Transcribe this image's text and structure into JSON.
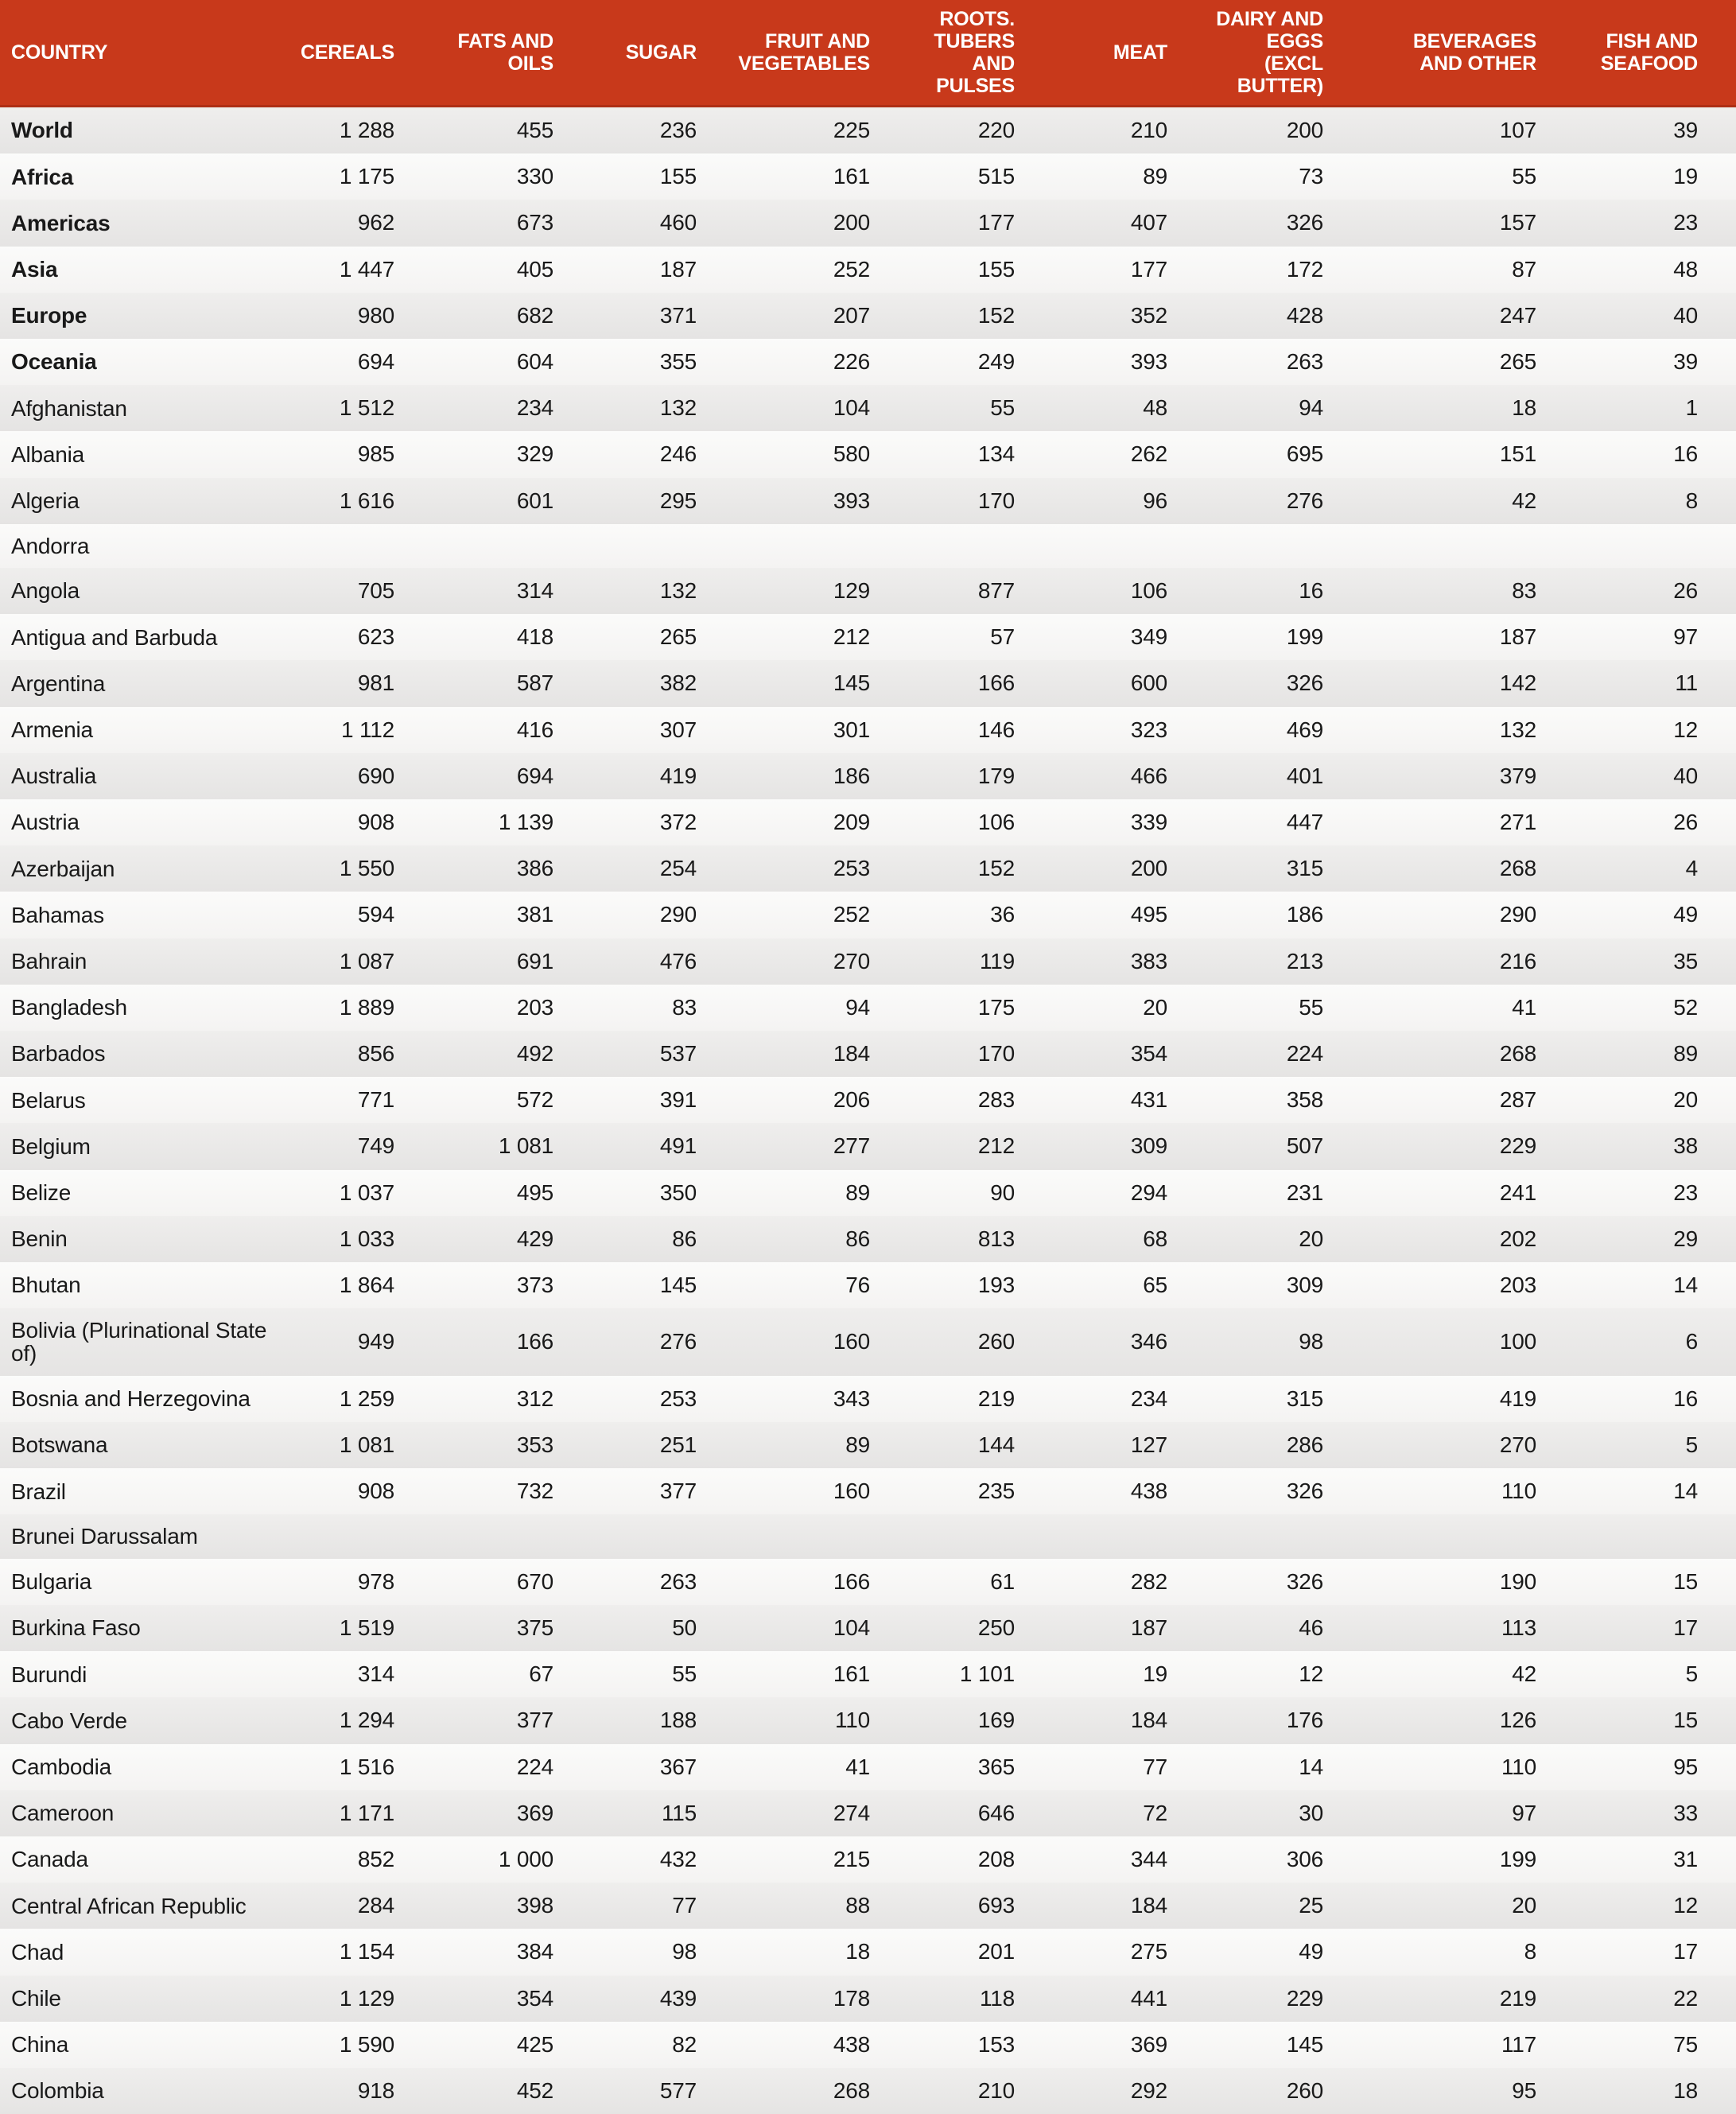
{
  "style": {
    "header_bg": "#c8391b",
    "header_text": "#ffffff",
    "row_odd_bg": "#e8e7e6",
    "row_even_bg": "#f8f7f6",
    "body_text": "#191919"
  },
  "chart_data": {
    "type": "table",
    "columns": [
      "COUNTRY",
      "CEREALS",
      "FATS AND OILS",
      "SUGAR",
      "FRUIT AND\nVEGETABLES",
      "ROOTS. TUBERS\nAND PULSES",
      "MEAT",
      "DAIRY AND EGGS\n(EXCL BUTTER)",
      "BEVERAGES\nAND OTHER",
      "FISH AND\nSEAFOOD"
    ],
    "rows": [
      {
        "country": "World",
        "bold": true,
        "values": [
          "1 288",
          "455",
          "236",
          "225",
          "220",
          "210",
          "200",
          "107",
          "39"
        ]
      },
      {
        "country": "Africa",
        "bold": true,
        "values": [
          "1 175",
          "330",
          "155",
          "161",
          "515",
          "89",
          "73",
          "55",
          "19"
        ]
      },
      {
        "country": "Americas",
        "bold": true,
        "values": [
          "962",
          "673",
          "460",
          "200",
          "177",
          "407",
          "326",
          "157",
          "23"
        ]
      },
      {
        "country": "Asia",
        "bold": true,
        "values": [
          "1 447",
          "405",
          "187",
          "252",
          "155",
          "177",
          "172",
          "87",
          "48"
        ]
      },
      {
        "country": "Europe",
        "bold": true,
        "values": [
          "980",
          "682",
          "371",
          "207",
          "152",
          "352",
          "428",
          "247",
          "40"
        ]
      },
      {
        "country": "Oceania",
        "bold": true,
        "values": [
          "694",
          "604",
          "355",
          "226",
          "249",
          "393",
          "263",
          "265",
          "39"
        ]
      },
      {
        "country": "Afghanistan",
        "bold": false,
        "values": [
          "1 512",
          "234",
          "132",
          "104",
          "55",
          "48",
          "94",
          "18",
          "1"
        ]
      },
      {
        "country": "Albania",
        "bold": false,
        "values": [
          "985",
          "329",
          "246",
          "580",
          "134",
          "262",
          "695",
          "151",
          "16"
        ]
      },
      {
        "country": "Algeria",
        "bold": false,
        "values": [
          "1 616",
          "601",
          "295",
          "393",
          "170",
          "96",
          "276",
          "42",
          "8"
        ]
      },
      {
        "country": "Andorra",
        "bold": false,
        "values": [
          "",
          "",
          "",
          "",
          "",
          "",
          "",
          "",
          ""
        ]
      },
      {
        "country": "Angola",
        "bold": false,
        "values": [
          "705",
          "314",
          "132",
          "129",
          "877",
          "106",
          "16",
          "83",
          "26"
        ]
      },
      {
        "country": "Antigua and Barbuda",
        "bold": false,
        "values": [
          "623",
          "418",
          "265",
          "212",
          "57",
          "349",
          "199",
          "187",
          "97"
        ]
      },
      {
        "country": "Argentina",
        "bold": false,
        "values": [
          "981",
          "587",
          "382",
          "145",
          "166",
          "600",
          "326",
          "142",
          "11"
        ]
      },
      {
        "country": "Armenia",
        "bold": false,
        "values": [
          "1 112",
          "416",
          "307",
          "301",
          "146",
          "323",
          "469",
          "132",
          "12"
        ]
      },
      {
        "country": "Australia",
        "bold": false,
        "values": [
          "690",
          "694",
          "419",
          "186",
          "179",
          "466",
          "401",
          "379",
          "40"
        ]
      },
      {
        "country": "Austria",
        "bold": false,
        "values": [
          "908",
          "1 139",
          "372",
          "209",
          "106",
          "339",
          "447",
          "271",
          "26"
        ]
      },
      {
        "country": "Azerbaijan",
        "bold": false,
        "values": [
          "1 550",
          "386",
          "254",
          "253",
          "152",
          "200",
          "315",
          "268",
          "4"
        ]
      },
      {
        "country": "Bahamas",
        "bold": false,
        "values": [
          "594",
          "381",
          "290",
          "252",
          "36",
          "495",
          "186",
          "290",
          "49"
        ]
      },
      {
        "country": "Bahrain",
        "bold": false,
        "values": [
          "1 087",
          "691",
          "476",
          "270",
          "119",
          "383",
          "213",
          "216",
          "35"
        ]
      },
      {
        "country": "Bangladesh",
        "bold": false,
        "values": [
          "1 889",
          "203",
          "83",
          "94",
          "175",
          "20",
          "55",
          "41",
          "52"
        ]
      },
      {
        "country": "Barbados",
        "bold": false,
        "values": [
          "856",
          "492",
          "537",
          "184",
          "170",
          "354",
          "224",
          "268",
          "89"
        ]
      },
      {
        "country": "Belarus",
        "bold": false,
        "values": [
          "771",
          "572",
          "391",
          "206",
          "283",
          "431",
          "358",
          "287",
          "20"
        ]
      },
      {
        "country": "Belgium",
        "bold": false,
        "values": [
          "749",
          "1 081",
          "491",
          "277",
          "212",
          "309",
          "507",
          "229",
          "38"
        ]
      },
      {
        "country": "Belize",
        "bold": false,
        "values": [
          "1 037",
          "495",
          "350",
          "89",
          "90",
          "294",
          "231",
          "241",
          "23"
        ]
      },
      {
        "country": "Benin",
        "bold": false,
        "values": [
          "1 033",
          "429",
          "86",
          "86",
          "813",
          "68",
          "20",
          "202",
          "29"
        ]
      },
      {
        "country": "Bhutan",
        "bold": false,
        "values": [
          "1 864",
          "373",
          "145",
          "76",
          "193",
          "65",
          "309",
          "203",
          "14"
        ]
      },
      {
        "country": "Bolivia (Plurinational State of)",
        "bold": false,
        "values": [
          "949",
          "166",
          "276",
          "160",
          "260",
          "346",
          "98",
          "100",
          "6"
        ]
      },
      {
        "country": "Bosnia and Herzegovina",
        "bold": false,
        "values": [
          "1 259",
          "312",
          "253",
          "343",
          "219",
          "234",
          "315",
          "419",
          "16"
        ]
      },
      {
        "country": "Botswana",
        "bold": false,
        "values": [
          "1 081",
          "353",
          "251",
          "89",
          "144",
          "127",
          "286",
          "270",
          "5"
        ]
      },
      {
        "country": "Brazil",
        "bold": false,
        "values": [
          "908",
          "732",
          "377",
          "160",
          "235",
          "438",
          "326",
          "110",
          "14"
        ]
      },
      {
        "country": "Brunei Darussalam",
        "bold": false,
        "values": [
          "",
          "",
          "",
          "",
          "",
          "",
          "",
          "",
          ""
        ]
      },
      {
        "country": "Bulgaria",
        "bold": false,
        "values": [
          "978",
          "670",
          "263",
          "166",
          "61",
          "282",
          "326",
          "190",
          "15"
        ]
      },
      {
        "country": "Burkina Faso",
        "bold": false,
        "values": [
          "1 519",
          "375",
          "50",
          "104",
          "250",
          "187",
          "46",
          "113",
          "17"
        ]
      },
      {
        "country": "Burundi",
        "bold": false,
        "values": [
          "314",
          "67",
          "55",
          "161",
          "1 101",
          "19",
          "12",
          "42",
          "5"
        ]
      },
      {
        "country": "Cabo Verde",
        "bold": false,
        "values": [
          "1 294",
          "377",
          "188",
          "110",
          "169",
          "184",
          "176",
          "126",
          "15"
        ]
      },
      {
        "country": "Cambodia",
        "bold": false,
        "values": [
          "1 516",
          "224",
          "367",
          "41",
          "365",
          "77",
          "14",
          "110",
          "95"
        ]
      },
      {
        "country": "Cameroon",
        "bold": false,
        "values": [
          "1 171",
          "369",
          "115",
          "274",
          "646",
          "72",
          "30",
          "97",
          "33"
        ]
      },
      {
        "country": "Canada",
        "bold": false,
        "values": [
          "852",
          "1 000",
          "432",
          "215",
          "208",
          "344",
          "306",
          "199",
          "31"
        ]
      },
      {
        "country": "Central African Republic",
        "bold": false,
        "values": [
          "284",
          "398",
          "77",
          "88",
          "693",
          "184",
          "25",
          "20",
          "12"
        ]
      },
      {
        "country": "Chad",
        "bold": false,
        "values": [
          "1 154",
          "384",
          "98",
          "18",
          "201",
          "275",
          "49",
          "8",
          "17"
        ]
      },
      {
        "country": "Chile",
        "bold": false,
        "values": [
          "1 129",
          "354",
          "439",
          "178",
          "118",
          "441",
          "229",
          "219",
          "22"
        ]
      },
      {
        "country": "China",
        "bold": false,
        "values": [
          "1 590",
          "425",
          "82",
          "438",
          "153",
          "369",
          "145",
          "117",
          "75"
        ]
      },
      {
        "country": "Colombia",
        "bold": false,
        "values": [
          "918",
          "452",
          "577",
          "268",
          "210",
          "292",
          "260",
          "95",
          "18"
        ]
      }
    ]
  }
}
